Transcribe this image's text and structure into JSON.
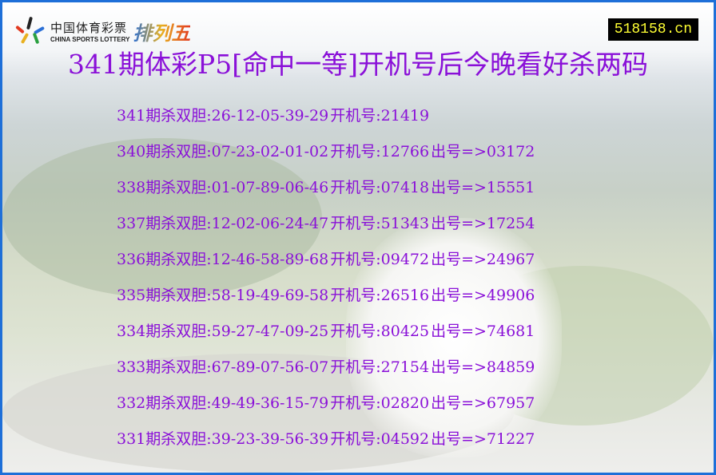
{
  "logo": {
    "cn": "中国体育彩票",
    "en": "CHINA SPORTS LOTTERY",
    "product": "排列五"
  },
  "site": "518158.cn",
  "title": "341期体彩P5[命中一等]开机号后今晚看好杀两码",
  "colors": {
    "text": "#8a10d8",
    "border": "#1e6fd8",
    "site_bg": "#000000",
    "site_text": "#ffff33"
  },
  "rows": [
    {
      "kill": "341期杀双胆:26-12-05-39-29",
      "open": "开机号:21419",
      "result": ""
    },
    {
      "kill": "340期杀双胆:07-23-02-01-02",
      "open": "开机号:12766",
      "result": "出号=>03172"
    },
    {
      "kill": "338期杀双胆:01-07-89-06-46",
      "open": "开机号:07418",
      "result": "出号=>15551"
    },
    {
      "kill": "337期杀双胆:12-02-06-24-47",
      "open": "开机号:51343",
      "result": "出号=>17254"
    },
    {
      "kill": "336期杀双胆:12-46-58-89-68",
      "open": "开机号:09472",
      "result": "出号=>24967"
    },
    {
      "kill": "335期杀双胆:58-19-49-69-58",
      "open": "开机号:26516",
      "result": "出号=>49906"
    },
    {
      "kill": "334期杀双胆:59-27-47-09-25",
      "open": "开机号:80425",
      "result": "出号=>74681"
    },
    {
      "kill": "333期杀双胆:67-89-07-56-07",
      "open": "开机号:27154",
      "result": "出号=>84859"
    },
    {
      "kill": "332期杀双胆:49-49-36-15-79",
      "open": "开机号:02820",
      "result": "出号=>67957"
    },
    {
      "kill": "331期杀双胆:39-23-39-56-39",
      "open": "开机号:04592",
      "result": "出号=>71227"
    }
  ]
}
